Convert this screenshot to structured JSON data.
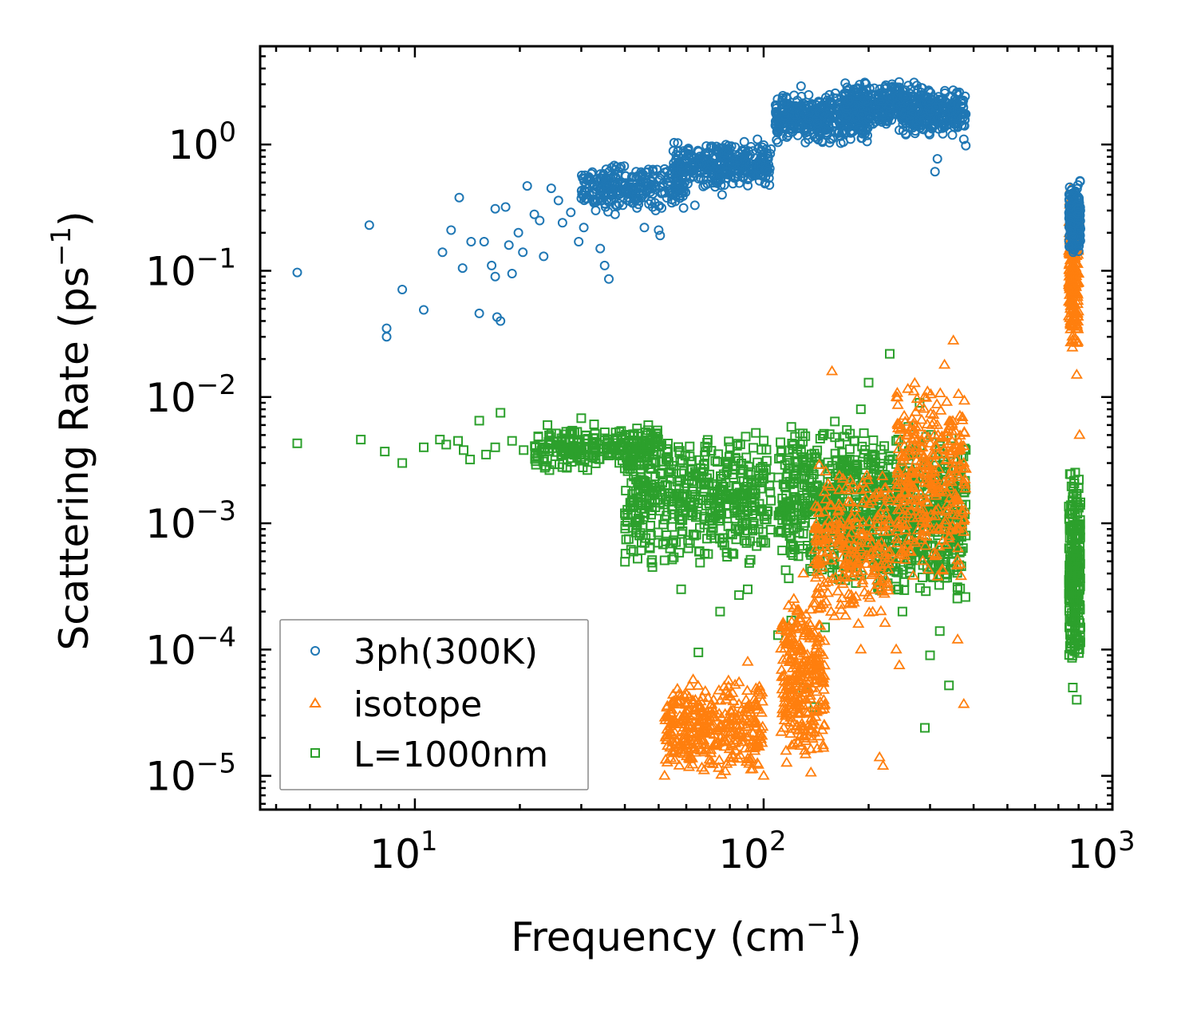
{
  "chart_data": {
    "type": "scatter",
    "title": "",
    "xlabel": "Frequency (cm",
    "xlabel_sup": "−1",
    "xlabel_tail": ")",
    "ylabel": "Scattering Rate (ps",
    "ylabel_sup": "−1",
    "ylabel_tail": ")",
    "xscale": "log",
    "yscale": "log",
    "xlim": [
      3.6,
      1000
    ],
    "ylim": [
      5.4e-06,
      6.0
    ],
    "x_ticks": [
      {
        "value": 10,
        "base": "10",
        "exp": "1"
      },
      {
        "value": 100,
        "base": "10",
        "exp": "2"
      },
      {
        "value": 1000,
        "base": "10",
        "exp": "3"
      }
    ],
    "y_ticks": [
      {
        "value": 1e-05,
        "base": "10",
        "exp": "−5"
      },
      {
        "value": 0.0001,
        "base": "10",
        "exp": "−4"
      },
      {
        "value": 0.001,
        "base": "10",
        "exp": "−3"
      },
      {
        "value": 0.01,
        "base": "10",
        "exp": "−2"
      },
      {
        "value": 0.1,
        "base": "10",
        "exp": "−1"
      },
      {
        "value": 1,
        "base": "10",
        "exp": "0"
      }
    ],
    "legend": {
      "location": "lower-left",
      "entries": [
        {
          "label": "3ph(300K)",
          "color": "#1f77b4",
          "marker": "circle"
        },
        {
          "label": "isotope",
          "color": "#ff7f0e",
          "marker": "triangle"
        },
        {
          "label": "L=1000nm",
          "color": "#2ca02c",
          "marker": "square"
        }
      ]
    },
    "series": [
      {
        "name": "3ph(300K)",
        "color": "#1f77b4",
        "marker": "circle",
        "points": [
          [
            4.6,
            0.097
          ],
          [
            7.4,
            0.23
          ],
          [
            8.3,
            0.035
          ],
          [
            8.3,
            0.03
          ],
          [
            9.2,
            0.071
          ],
          [
            10.6,
            0.049
          ],
          [
            12.0,
            0.14
          ],
          [
            12.7,
            0.21
          ],
          [
            13.4,
            0.38
          ],
          [
            13.7,
            0.105
          ],
          [
            14.5,
            0.17
          ],
          [
            15.3,
            0.046
          ],
          [
            15.8,
            0.17
          ],
          [
            16.6,
            0.11
          ],
          [
            17.0,
            0.31
          ],
          [
            17.0,
            0.09
          ],
          [
            17.2,
            0.043
          ],
          [
            17.6,
            0.04
          ],
          [
            18.2,
            0.32
          ],
          [
            18.6,
            0.16
          ],
          [
            19.0,
            0.095
          ],
          [
            19.8,
            0.2
          ],
          [
            20.4,
            0.14
          ],
          [
            21.0,
            0.47
          ],
          [
            22.0,
            0.28
          ],
          [
            22.8,
            0.25
          ],
          [
            23.4,
            0.13
          ],
          [
            24.6,
            0.45
          ],
          [
            25.8,
            0.36
          ],
          [
            26.5,
            0.24
          ],
          [
            28.0,
            0.29
          ],
          [
            29.5,
            0.17
          ],
          [
            30.5,
            0.22
          ],
          [
            31.5,
            0.52
          ],
          [
            33.0,
            0.3
          ],
          [
            34.0,
            0.15
          ],
          [
            35.0,
            0.11
          ],
          [
            36.0,
            0.086
          ],
          [
            36.5,
            0.42
          ],
          [
            37.5,
            0.28
          ],
          [
            38.5,
            0.34
          ],
          [
            40.0,
            0.47
          ],
          [
            41.0,
            0.38
          ],
          [
            42.5,
            0.55
          ],
          [
            44.0,
            0.45
          ],
          [
            45.5,
            0.22
          ],
          [
            46.0,
            0.6
          ],
          [
            47.5,
            0.52
          ],
          [
            49.0,
            0.3
          ],
          [
            50.0,
            0.21
          ],
          [
            50.5,
            0.19
          ],
          [
            52.0,
            0.64
          ],
          [
            54.0,
            0.58
          ],
          [
            56.0,
            0.75
          ],
          [
            58.0,
            0.68
          ],
          [
            60.0,
            0.55
          ],
          [
            62.0,
            0.8
          ],
          [
            63.5,
            0.33
          ],
          [
            65.0,
            0.72
          ],
          [
            68.0,
            0.85
          ],
          [
            70.0,
            0.62
          ],
          [
            73.0,
            0.78
          ],
          [
            76.0,
            0.4
          ],
          [
            80.0,
            0.92
          ],
          [
            84.0,
            0.81
          ],
          [
            88.0,
            1.05
          ],
          [
            92.0,
            0.96
          ],
          [
            96.0,
            1.1
          ],
          [
            100.0,
            0.99
          ],
          [
            105.0,
            0.92
          ],
          [
            110.0,
            1.3
          ],
          [
            115.0,
            1.7
          ],
          [
            120.0,
            1.4
          ],
          [
            125.0,
            2.0
          ],
          [
            128.0,
            2.9
          ],
          [
            135.0,
            1.6
          ],
          [
            145.0,
            1.8
          ],
          [
            155.0,
            2.1
          ],
          [
            165.0,
            1.5
          ],
          [
            175.0,
            2.2
          ],
          [
            185.0,
            2.6
          ],
          [
            195.0,
            3.1
          ],
          [
            205.0,
            2.5
          ],
          [
            215.0,
            2.2
          ],
          [
            230.0,
            1.8
          ],
          [
            245.0,
            1.3
          ],
          [
            255.0,
            2.4
          ],
          [
            270.0,
            3.1
          ],
          [
            285.0,
            2.8
          ],
          [
            300.0,
            2.3
          ],
          [
            310.0,
            0.61
          ],
          [
            315.0,
            0.77
          ],
          [
            330.0,
            1.9
          ],
          [
            345.0,
            2.1
          ],
          [
            360.0,
            1.4
          ],
          [
            375.0,
            1.1
          ],
          [
            380.0,
            0.98
          ]
        ],
        "bands": [
          {
            "x": [
              30,
              60
            ],
            "y": [
              0.28,
              0.72
            ],
            "n": 260
          },
          {
            "x": [
              55,
              105
            ],
            "y": [
              0.45,
              1.1
            ],
            "n": 320
          },
          {
            "x": [
              108,
              200
            ],
            "y": [
              1.0,
              2.6
            ],
            "n": 420
          },
          {
            "x": [
              170,
              260
            ],
            "y": [
              1.4,
              3.2
            ],
            "n": 260
          },
          {
            "x": [
              250,
              380
            ],
            "y": [
              1.1,
              3.0
            ],
            "n": 300
          },
          {
            "x": [
              750,
              810
            ],
            "y": [
              0.13,
              0.52
            ],
            "n": 240
          }
        ]
      },
      {
        "name": "isotope",
        "color": "#ff7f0e",
        "marker": "triangle",
        "points": [
          [
            52,
            1e-05
          ],
          [
            64,
            2e-05
          ],
          [
            66,
            3.2e-05
          ],
          [
            72,
            2.5e-05
          ],
          [
            78,
            4e-05
          ],
          [
            85,
            5.5e-05
          ],
          [
            90,
            8e-05
          ],
          [
            100,
            1e-05
          ],
          [
            120,
            0.00011
          ],
          [
            130,
            0.0004
          ],
          [
            150,
            0.00095
          ],
          [
            157,
            0.016
          ],
          [
            165,
            0.0007
          ],
          [
            190,
            0.0001
          ],
          [
            215,
            1.4e-05
          ],
          [
            220,
            1.2e-05
          ],
          [
            230,
            0.0015
          ],
          [
            240,
            0.0001
          ],
          [
            245,
            7.5e-05
          ],
          [
            250,
            0.001
          ],
          [
            270,
            0.0055
          ],
          [
            290,
            0.005
          ],
          [
            330,
            0.018
          ],
          [
            350,
            0.028
          ],
          [
            360,
            0.00012
          ],
          [
            375,
            3.7e-05
          ],
          [
            760,
            0.45
          ],
          [
            770,
            0.1
          ],
          [
            780,
            0.04
          ],
          [
            790,
            0.015
          ],
          [
            800,
            0.25
          ],
          [
            805,
            0.005
          ]
        ],
        "bands": [
          {
            "x": [
              52,
              100
            ],
            "y": [
              1e-05,
              6e-05
            ],
            "n": 360
          },
          {
            "x": [
              112,
              150
            ],
            "y": [
              1e-05,
              0.0003
            ],
            "n": 300
          },
          {
            "x": [
              140,
              230
            ],
            "y": [
              0.00015,
              0.003
            ],
            "n": 260
          },
          {
            "x": [
              240,
              380
            ],
            "y": [
              0.0003,
              0.015
            ],
            "n": 340
          },
          {
            "x": [
              750,
              800
            ],
            "y": [
              0.02,
              0.45
            ],
            "n": 220
          }
        ]
      },
      {
        "name": "L=1000nm",
        "color": "#2ca02c",
        "marker": "square",
        "points": [
          [
            4.6,
            0.0043
          ],
          [
            7.0,
            0.0046
          ],
          [
            8.2,
            0.0037
          ],
          [
            9.2,
            0.003
          ],
          [
            10.6,
            0.004
          ],
          [
            11.8,
            0.0046
          ],
          [
            12.3,
            0.0042
          ],
          [
            13.3,
            0.0045
          ],
          [
            13.8,
            0.0038
          ],
          [
            14.4,
            0.0032
          ],
          [
            15.3,
            0.0065
          ],
          [
            16.0,
            0.0035
          ],
          [
            17.0,
            0.004
          ],
          [
            17.6,
            0.0075
          ],
          [
            19.0,
            0.0045
          ],
          [
            20.5,
            0.0038
          ],
          [
            24.0,
            0.006
          ],
          [
            30.0,
            0.0068
          ],
          [
            40.0,
            0.0012
          ],
          [
            44.0,
            0.0008
          ],
          [
            48.0,
            0.00045
          ],
          [
            58.0,
            0.0003
          ],
          [
            65.0,
            9.5e-05
          ],
          [
            75.0,
            0.0002
          ],
          [
            85.0,
            0.00027
          ],
          [
            90.0,
            0.0003
          ],
          [
            95.0,
            0.0052
          ],
          [
            110.0,
            0.00013
          ],
          [
            120.0,
            0.00017
          ],
          [
            130.0,
            5e-05
          ],
          [
            140.0,
            3.5e-05
          ],
          [
            150.0,
            0.00015
          ],
          [
            160.0,
            0.0064
          ],
          [
            175.0,
            0.0008
          ],
          [
            190.0,
            0.008
          ],
          [
            200.0,
            0.013
          ],
          [
            220.0,
            0.0005
          ],
          [
            230.0,
            0.022
          ],
          [
            240.0,
            0.0045
          ],
          [
            250.0,
            0.0002
          ],
          [
            260.0,
            0.0058
          ],
          [
            280.0,
            0.009
          ],
          [
            290.0,
            2.4e-05
          ],
          [
            300.0,
            9e-05
          ],
          [
            320.0,
            0.00014
          ],
          [
            340.0,
            5.2e-05
          ],
          [
            360.0,
            0.0003
          ],
          [
            380.0,
            0.0008
          ],
          [
            760.0,
            0.00012
          ],
          [
            770.0,
            5e-05
          ],
          [
            790.0,
            4e-05
          ],
          [
            810.0,
            0.00015
          ]
        ],
        "bands": [
          {
            "x": [
              22,
              50
            ],
            "y": [
              0.0025,
              0.0062
            ],
            "n": 260
          },
          {
            "x": [
              40,
              105
            ],
            "y": [
              0.00045,
              0.0055
            ],
            "n": 480
          },
          {
            "x": [
              110,
              210
            ],
            "y": [
              0.0003,
              0.0062
            ],
            "n": 480
          },
          {
            "x": [
              210,
              380
            ],
            "y": [
              0.00022,
              0.0058
            ],
            "n": 440
          },
          {
            "x": [
              750,
              810
            ],
            "y": [
              6e-05,
              0.003
            ],
            "n": 260
          }
        ]
      }
    ]
  }
}
